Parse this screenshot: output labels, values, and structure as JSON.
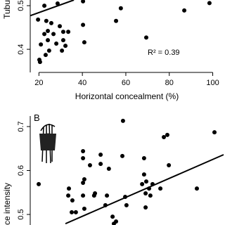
{
  "chart_data": [
    {
      "type": "scatter",
      "ylabel": "Tubu",
      "xlabel": "Horizontal concealment (%)",
      "annotation": "R² = 0.39",
      "color": "#000000",
      "xlim": [
        16,
        105
      ],
      "ylim": [
        0.347,
        0.513
      ],
      "xticks": [
        20,
        40,
        60,
        80,
        100
      ],
      "yticks": [
        0.4,
        0.5
      ],
      "x": [
        22.5,
        28.6,
        40.3,
        57.7,
        55.5,
        19.6,
        23.4,
        25.7,
        29.6,
        24.1,
        26.7,
        22.5,
        31.2,
        33.5,
        24.1,
        31.2,
        20.9,
        28.0,
        32.2,
        30.6,
        23.1,
        24.7,
        20.2,
        20.5,
        40.3,
        40.9,
        69.4,
        86.9,
        98.5
      ],
      "values": [
        0.5,
        0.505,
        0.51,
        0.494,
        0.465,
        0.468,
        0.465,
        0.46,
        0.453,
        0.442,
        0.435,
        0.435,
        0.44,
        0.44,
        0.421,
        0.421,
        0.411,
        0.413,
        0.408,
        0.397,
        0.387,
        0.397,
        0.376,
        0.371,
        0.456,
        0.416,
        0.427,
        0.489,
        0.506
      ],
      "trend": {
        "x": [
          16,
          36.1
        ],
        "values": [
          0.477,
          0.513
        ]
      }
    },
    {
      "type": "scatter",
      "panel_label": "B",
      "ylabel": "ce intensity",
      "color": "#000000",
      "xlim": [
        16,
        105
      ],
      "ylim": [
        0.476,
        0.724
      ],
      "yticks": [
        0.5,
        0.6,
        0.7
      ],
      "x": [
        19.9,
        33.8,
        33.5,
        35.4,
        35.1,
        37.0,
        40.9,
        40.3,
        40.3,
        40.9,
        40.3,
        40.3,
        43.5,
        45.4,
        45.8,
        48.4,
        48.4,
        51.3,
        52.2,
        50.6,
        53.9,
        54.5,
        55.5,
        58.7,
        58.4,
        59.7,
        60.3,
        68.4,
        69.1,
        70.7,
        72.3,
        68.4,
        67.5,
        69.1,
        69.4,
        77.5,
        79.8,
        75.9,
        92.7,
        100.8,
        71.3,
        79.1
      ],
      "values": [
        0.569,
        0.559,
        0.543,
        0.532,
        0.505,
        0.505,
        0.513,
        0.572,
        0.543,
        0.58,
        0.644,
        0.628,
        0.612,
        0.543,
        0.548,
        0.615,
        0.636,
        0.543,
        0.604,
        0.521,
        0.495,
        0.479,
        0.484,
        0.713,
        0.633,
        0.54,
        0.521,
        0.628,
        0.516,
        0.559,
        0.569,
        0.591,
        0.569,
        0.548,
        0.575,
        0.676,
        0.612,
        0.559,
        0.559,
        0.687,
        0.543,
        0.681
      ],
      "trend": {
        "x": [
          32.2,
          105
        ],
        "values": [
          0.479,
          0.636
        ]
      }
    }
  ]
}
